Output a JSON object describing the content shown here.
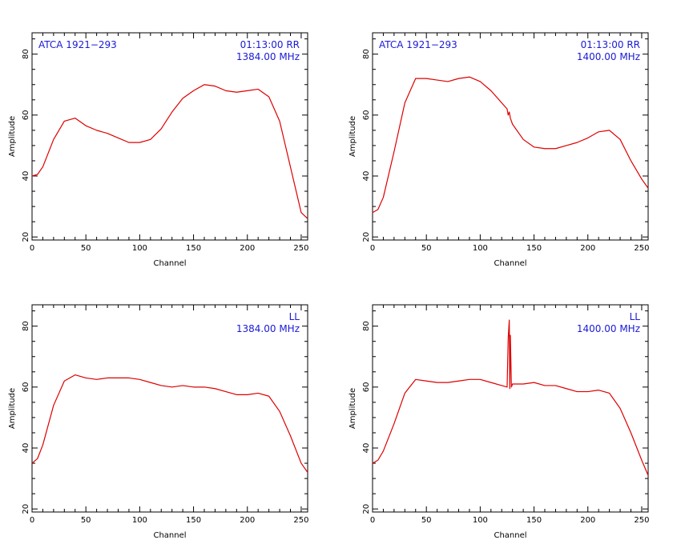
{
  "chart_data": [
    {
      "type": "line",
      "xlabel": "Channel",
      "ylabel": "Amplitude",
      "xlim": [
        0,
        256
      ],
      "ylim": [
        19,
        87
      ],
      "xticks": [
        0,
        50,
        100,
        150,
        200,
        250
      ],
      "yticks": [
        20,
        40,
        60,
        80
      ],
      "annotations": {
        "top_left": "ATCA 1921−293",
        "top_right": "01:13:00  RR",
        "second_right": "1384.00 MHz"
      },
      "color": "#dd0000",
      "series": [
        {
          "x": [
            0,
            5,
            10,
            20,
            30,
            40,
            50,
            60,
            70,
            80,
            90,
            100,
            110,
            120,
            130,
            140,
            150,
            160,
            170,
            180,
            190,
            200,
            210,
            220,
            230,
            240,
            250,
            256
          ],
          "y": [
            40,
            40.5,
            43,
            52,
            58,
            59,
            56.5,
            55,
            54,
            52.5,
            51,
            51,
            52,
            55.5,
            61,
            65.5,
            68,
            70,
            69.5,
            68,
            67.5,
            68,
            68.5,
            66,
            58,
            43,
            28,
            26
          ]
        }
      ]
    },
    {
      "type": "line",
      "xlabel": "Channel",
      "ylabel": "Amplitude",
      "xlim": [
        0,
        256
      ],
      "ylim": [
        19,
        87
      ],
      "xticks": [
        0,
        50,
        100,
        150,
        200,
        250
      ],
      "yticks": [
        20,
        40,
        60,
        80
      ],
      "annotations": {
        "top_left": "ATCA 1921−293",
        "top_right": "01:13:00  RR",
        "second_right": "1400.00 MHz"
      },
      "color": "#dd0000",
      "series": [
        {
          "x": [
            0,
            5,
            10,
            20,
            30,
            40,
            50,
            60,
            70,
            80,
            90,
            100,
            110,
            120,
            125,
            126,
            127,
            128,
            130,
            140,
            150,
            160,
            170,
            180,
            190,
            200,
            210,
            220,
            230,
            240,
            250,
            256
          ],
          "y": [
            28,
            29,
            33,
            48,
            64,
            72,
            72,
            71.5,
            71,
            72,
            72.5,
            71,
            68,
            64,
            62,
            60,
            61,
            59,
            57,
            52,
            49.5,
            49,
            49,
            50,
            51,
            52.5,
            54.5,
            55,
            52,
            45,
            39,
            36
          ]
        }
      ]
    },
    {
      "type": "line",
      "xlabel": "Channel",
      "ylabel": "Amplitude",
      "xlim": [
        0,
        256
      ],
      "ylim": [
        19,
        87
      ],
      "xticks": [
        0,
        50,
        100,
        150,
        200,
        250
      ],
      "yticks": [
        20,
        40,
        60,
        80
      ],
      "annotations": {
        "top_left": "",
        "top_right": "LL",
        "second_right": "1384.00 MHz"
      },
      "color": "#dd0000",
      "series": [
        {
          "x": [
            0,
            5,
            10,
            20,
            30,
            40,
            50,
            60,
            70,
            80,
            90,
            100,
            110,
            120,
            130,
            140,
            150,
            160,
            170,
            180,
            190,
            200,
            210,
            220,
            230,
            240,
            250,
            256
          ],
          "y": [
            35,
            36.5,
            41,
            54,
            62,
            64,
            63,
            62.5,
            63,
            63,
            63,
            62.5,
            61.5,
            60.5,
            60,
            60.5,
            60,
            60,
            59.5,
            58.5,
            57.5,
            57.5,
            58,
            57,
            52,
            44,
            35,
            32
          ]
        }
      ]
    },
    {
      "type": "line",
      "xlabel": "Channel",
      "ylabel": "Amplitude",
      "xlim": [
        0,
        256
      ],
      "ylim": [
        19,
        87
      ],
      "xticks": [
        0,
        50,
        100,
        150,
        200,
        250
      ],
      "yticks": [
        20,
        40,
        60,
        80
      ],
      "annotations": {
        "top_left": "",
        "top_right": "LL",
        "second_right": "1400.00 MHz"
      },
      "color": "#dd0000",
      "series": [
        {
          "x": [
            0,
            5,
            10,
            20,
            30,
            40,
            50,
            60,
            70,
            80,
            90,
            100,
            110,
            120,
            125,
            126,
            127,
            127.5,
            128,
            129,
            130,
            140,
            150,
            160,
            170,
            180,
            190,
            200,
            210,
            220,
            230,
            240,
            250,
            256
          ],
          "y": [
            35,
            36,
            39,
            48,
            58,
            62.5,
            62,
            61.5,
            61.5,
            62,
            62.5,
            62.5,
            61.5,
            60.5,
            60,
            76,
            82,
            59.5,
            77,
            60,
            61,
            61,
            61.5,
            60.5,
            60.5,
            59.5,
            58.5,
            58.5,
            59,
            58,
            53,
            45,
            36,
            31
          ]
        }
      ]
    }
  ]
}
